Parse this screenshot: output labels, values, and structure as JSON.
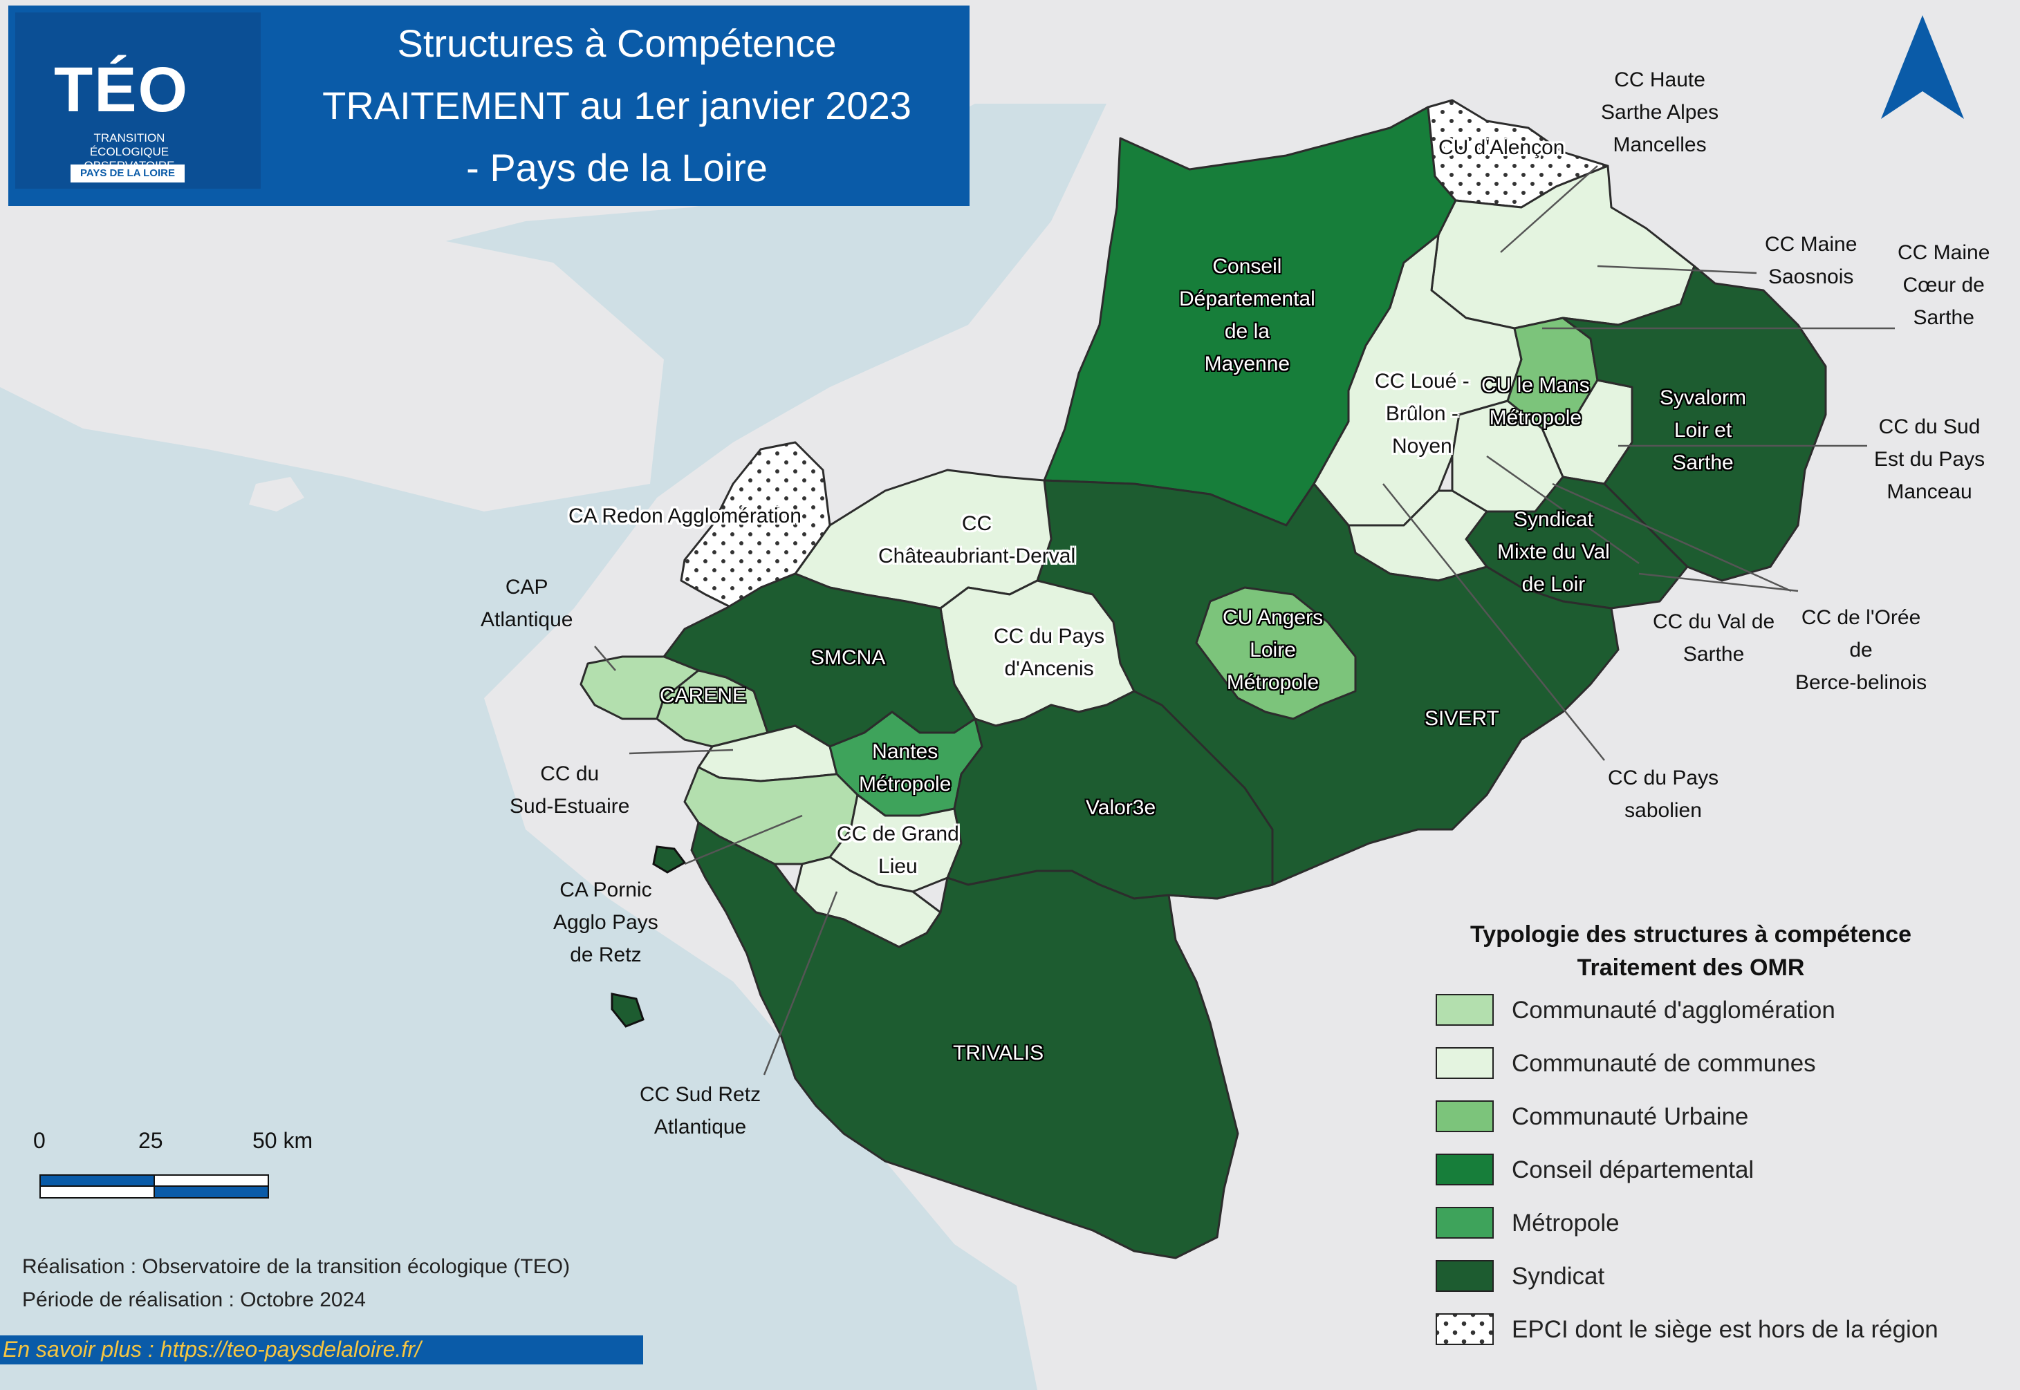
{
  "title": {
    "line1": "Structures à Compétence",
    "line2": "TRAITEMENT au 1er janvier 2023",
    "line3": "- Pays de la Loire"
  },
  "logo": {
    "name": "TÉO",
    "subtitle": "TRANSITION ÉCOLOGIQUE OBSERVATOIRE",
    "region": "PAYS DE LA LOIRE"
  },
  "colors": {
    "sea": "#cfdfe5",
    "land_outside": "#e8e8ea",
    "communaute_agglomeration": "#b3dfae",
    "communaute_communes": "#e4f4e0",
    "communaute_urbaine": "#7cc47b",
    "conseil_departemental": "#177e3a",
    "metropole": "#3ea35b",
    "syndicat": "#1d5c30",
    "hors_region": "#ffffff",
    "title_band": "#0a5ba8",
    "north_arrow": "#0a5ba8"
  },
  "north_arrow_icon": "north-arrow-icon",
  "territories": [
    {
      "id": "cd-mayenne",
      "name": "Conseil Départemental de la Mayenne",
      "type": "Conseil départemental"
    },
    {
      "id": "sivert",
      "name": "SIVERT",
      "type": "Syndicat"
    },
    {
      "id": "trivalis",
      "name": "TRIVALIS",
      "type": "Syndicat"
    },
    {
      "id": "smcna",
      "name": "SMCNA",
      "type": "Syndicat"
    },
    {
      "id": "valor3e",
      "name": "Valor3e",
      "type": "Syndicat"
    },
    {
      "id": "syvalorm",
      "name": "Syvalorm Loir et Sarthe",
      "type": "Syndicat"
    },
    {
      "id": "sm-val-de-loir",
      "name": "Syndicat Mixte du Val de Loir",
      "type": "Syndicat"
    },
    {
      "id": "nantes-metropole",
      "name": "Nantes Métropole",
      "type": "Métropole"
    },
    {
      "id": "cu-angers",
      "name": "CU Angers Loire Métropole",
      "type": "Communauté Urbaine"
    },
    {
      "id": "cu-le-mans",
      "name": "CU le Mans Métropole",
      "type": "Communauté Urbaine"
    },
    {
      "id": "carene",
      "name": "CARENE",
      "type": "Communauté d'agglomération"
    },
    {
      "id": "cap-atlantique",
      "name": "CAP Atlantique",
      "type": "Communauté d'agglomération"
    },
    {
      "id": "ca-pornic",
      "name": "CA Pornic Agglo Pays de Retz",
      "type": "Communauté d'agglomération"
    },
    {
      "id": "cc-sud-estuaire",
      "name": "CC du Sud-Estuaire",
      "type": "Communauté de communes"
    },
    {
      "id": "cc-grand-lieu",
      "name": "CC de Grand Lieu",
      "type": "Communauté de communes"
    },
    {
      "id": "cc-sud-retz",
      "name": "CC Sud Retz Atlantique",
      "type": "Communauté de communes"
    },
    {
      "id": "cc-chateaubriant",
      "name": "CC Châteaubriant-Derval",
      "type": "Communauté de communes"
    },
    {
      "id": "cc-ancenis",
      "name": "CC du Pays d'Ancenis",
      "type": "Communauté de communes"
    },
    {
      "id": "cc-sarthe-nord",
      "name": "CC Haute Sarthe Alpes Mancelles",
      "type": "Communauté de communes"
    },
    {
      "id": "cc-maine-saosnois",
      "name": "CC Maine Saosnois",
      "type": "Communauté de communes"
    },
    {
      "id": "cc-maine-coeur",
      "name": "CC Maine Cœur de Sarthe",
      "type": "Communauté de communes"
    },
    {
      "id": "cc-loue",
      "name": "CC Loué - Brûlon - Noyen",
      "type": "Communauté de communes"
    },
    {
      "id": "cc-sud-est-manceau",
      "name": "CC du Sud Est du Pays Manceau",
      "type": "Communauté de communes"
    },
    {
      "id": "cc-val-sarthe",
      "name": "CC du Val de Sarthe",
      "type": "Communauté de communes"
    },
    {
      "id": "cc-sabolien",
      "name": "CC du Pays sabolien",
      "type": "Communauté de communes"
    },
    {
      "id": "cc-oree-berce",
      "name": "CC de l'Orée de Berce-belinois",
      "type": "Communauté de communes"
    },
    {
      "id": "cu-alencon",
      "name": "CU d'Alençon",
      "type": "EPCI dont le siège est hors de la région"
    },
    {
      "id": "ca-redon",
      "name": "CA Redon Agglomération",
      "type": "EPCI dont le siège est hors de la région"
    }
  ],
  "labels": {
    "cd_mayenne": [
      "Conseil",
      "Départemental",
      "de la",
      "Mayenne"
    ],
    "sivert": [
      "SIVERT"
    ],
    "trivalis": [
      "TRIVALIS"
    ],
    "smcna": [
      "SMCNA"
    ],
    "valor3e": [
      "Valor3e"
    ],
    "syvalorm": [
      "Syvalorm",
      "Loir et",
      "Sarthe"
    ],
    "sm_val_loir": [
      "Syndicat",
      "Mixte du Val",
      "de Loir"
    ],
    "nantes": [
      "Nantes",
      "Métropole"
    ],
    "angers": [
      "CU Angers",
      "Loire",
      "Métropole"
    ],
    "lemans": [
      "CU le Mans",
      "Métropole"
    ],
    "carene": [
      "CARENE"
    ],
    "cap_atlantique": [
      "CAP",
      "Atlantique"
    ],
    "ca_pornic": [
      "CA Pornic",
      "Agglo Pays",
      "de Retz"
    ],
    "sud_estuaire": [
      "CC du",
      "Sud-Estuaire"
    ],
    "grand_lieu": [
      "CC de Grand",
      "Lieu"
    ],
    "sud_retz": [
      "CC Sud Retz",
      "Atlantique"
    ],
    "chateaubriant": [
      "CC",
      "Châteaubriant-Derval"
    ],
    "ancenis": [
      "CC du Pays",
      "d'Ancenis"
    ],
    "haute_sarthe": [
      "CC Haute",
      "Sarthe Alpes",
      "Mancelles"
    ],
    "maine_saosnois": [
      "CC Maine",
      "Saosnois"
    ],
    "maine_coeur": [
      "CC Maine",
      "Cœur de",
      "Sarthe"
    ],
    "loue": [
      "CC Loué -",
      "Brûlon -",
      "Noyen"
    ],
    "sud_est_manceau": [
      "CC du Sud",
      "Est du Pays",
      "Manceau"
    ],
    "val_sarthe": [
      "CC du Val de",
      "Sarthe"
    ],
    "sabolien": [
      "CC du Pays",
      "sabolien"
    ],
    "oree_berce": [
      "CC de l'Orée",
      "de",
      "Berce-belinois"
    ],
    "alencon": [
      "CU d'Alençon"
    ],
    "redon": [
      "CA Redon Agglomération"
    ]
  },
  "legend": {
    "title_line1": "Typologie des structures à compétence",
    "title_line2": "Traitement des OMR",
    "items": [
      {
        "label": "Communauté d'agglomération",
        "color": "#b3dfae",
        "pattern": "solid"
      },
      {
        "label": "Communauté de communes",
        "color": "#e4f4e0",
        "pattern": "solid"
      },
      {
        "label": "Communauté Urbaine",
        "color": "#7cc47b",
        "pattern": "solid"
      },
      {
        "label": "Conseil départemental",
        "color": "#177e3a",
        "pattern": "solid"
      },
      {
        "label": "Métropole",
        "color": "#3ea35b",
        "pattern": "solid"
      },
      {
        "label": "Syndicat",
        "color": "#1d5c30",
        "pattern": "solid"
      },
      {
        "label": "EPCI dont le siège est hors de la région",
        "color": "#ffffff",
        "pattern": "dots"
      }
    ]
  },
  "scale": {
    "labels": [
      "0",
      "25",
      "50 km"
    ]
  },
  "credits": {
    "realisation": "Réalisation : Observatoire de la transition écologique (TEO)",
    "periode": "Période de réalisation : Octobre 2024",
    "link": "En savoir plus : https://teo-paysdelaloire.fr/"
  }
}
